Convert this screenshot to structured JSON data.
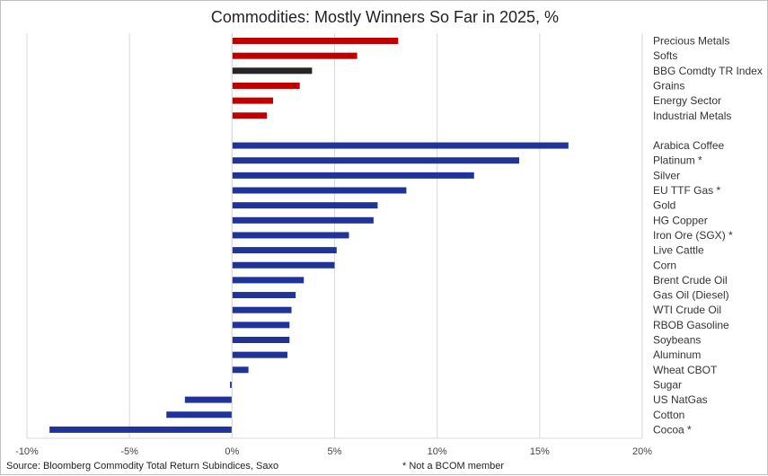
{
  "chart_data": {
    "type": "bar",
    "orientation": "horizontal",
    "title": "Commodities: Mostly Winners So Far in 2025, %",
    "xlim": [
      -10,
      20
    ],
    "x_ticks": [
      "-10%",
      "-5%",
      "0%",
      "5%",
      "10%",
      "15%",
      "20%"
    ],
    "x_tick_values": [
      -10,
      -5,
      0,
      5,
      10,
      15,
      20
    ],
    "grid": "vertical",
    "groups": [
      {
        "color": "#c00000",
        "bars": [
          {
            "label": "Precious Metals",
            "value": 8.1
          },
          {
            "label": "Softs",
            "value": 6.1
          },
          {
            "label": "BBG Comdty TR Index",
            "value": 3.9,
            "color": "#262626"
          },
          {
            "label": "Grains",
            "value": 3.3
          },
          {
            "label": "Energy Sector",
            "value": 2.0
          },
          {
            "label": "Industrial Metals",
            "value": 1.7
          }
        ]
      },
      {
        "color": "#1f3399",
        "bars": [
          {
            "label": "Arabica Coffee",
            "value": 16.4
          },
          {
            "label": "Platinum *",
            "value": 14.0
          },
          {
            "label": "Silver",
            "value": 11.8
          },
          {
            "label": "EU TTF Gas *",
            "value": 8.5
          },
          {
            "label": "Gold",
            "value": 7.1
          },
          {
            "label": "HG Copper",
            "value": 6.9
          },
          {
            "label": "Iron Ore (SGX) *",
            "value": 5.7
          },
          {
            "label": "Live Cattle",
            "value": 5.1
          },
          {
            "label": "Corn",
            "value": 5.0
          },
          {
            "label": "Brent Crude Oil",
            "value": 3.5
          },
          {
            "label": "Gas Oil (Diesel)",
            "value": 3.1
          },
          {
            "label": "WTI Crude Oil",
            "value": 2.9
          },
          {
            "label": "RBOB Gasoline",
            "value": 2.8
          },
          {
            "label": "Soybeans",
            "value": 2.8
          },
          {
            "label": "Aluminum",
            "value": 2.7
          },
          {
            "label": "Wheat CBOT",
            "value": 0.8
          },
          {
            "label": "Sugar",
            "value": -0.1
          },
          {
            "label": "US NatGas",
            "value": -2.3
          },
          {
            "label": "Cotton",
            "value": -3.2
          },
          {
            "label": "Cocoa *",
            "value": -8.9
          }
        ]
      }
    ]
  },
  "footer": {
    "source": "Source: Bloomberg Commodity Total Return Subindices, Saxo",
    "note": "* Not a BCOM member"
  }
}
